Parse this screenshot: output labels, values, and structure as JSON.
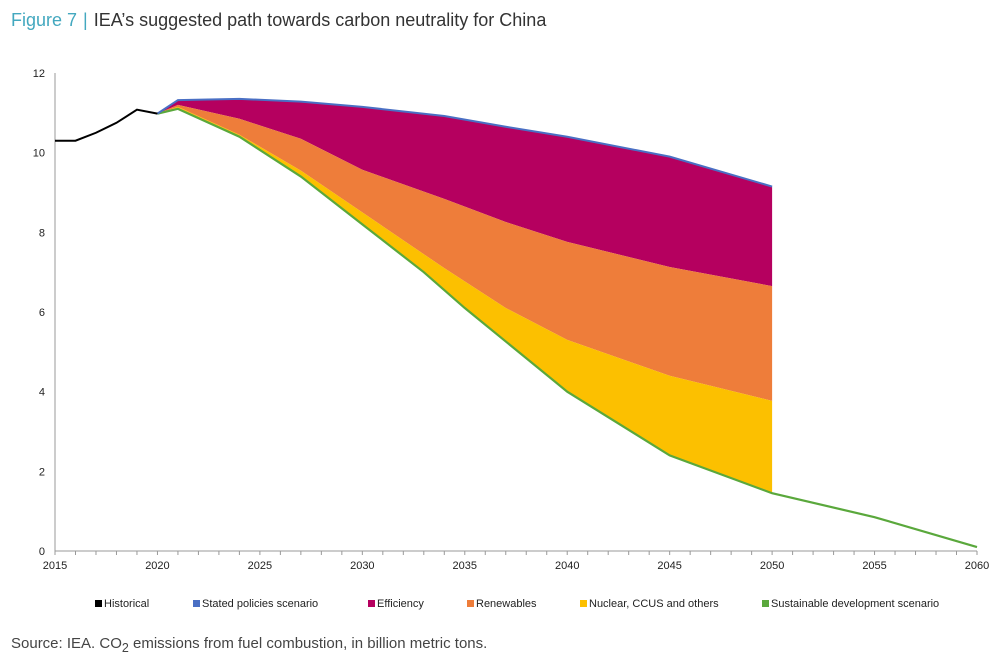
{
  "title": {
    "figure": "Figure 7",
    "text": "IEA’s suggested path towards carbon neutrality for China"
  },
  "source": {
    "prefix": "Source: IEA. CO",
    "sub": "2",
    "suffix": " emissions from fuel combustion, in billion metric tons."
  },
  "chart_data": {
    "type": "area",
    "xlim": [
      2015,
      2060
    ],
    "ylim": [
      0,
      12
    ],
    "xticks": [
      "2015",
      "2020",
      "2025",
      "2030",
      "2035",
      "2040",
      "2045",
      "2050",
      "2055",
      "2060"
    ],
    "yticks": [
      "0",
      "2",
      "4",
      "6",
      "8",
      "10",
      "12"
    ],
    "legend_position": "bottom",
    "colors": {
      "historical": "#000000",
      "stated": "#4a6fc4",
      "efficiency": "#b5005f",
      "renewables": "#ee7d3a",
      "nuclear": "#fcc000",
      "sds": "#5aa83c"
    },
    "series": [
      {
        "name": "Historical",
        "key": "historical",
        "x": [
          2015,
          2016,
          2017,
          2018,
          2019,
          2020
        ],
        "values": [
          10.3,
          10.3,
          10.5,
          10.75,
          11.08,
          10.98
        ]
      },
      {
        "name": "Stated policies scenario",
        "key": "stated",
        "x": [
          2020,
          2021,
          2024,
          2027,
          2030,
          2034,
          2037,
          2040,
          2045,
          2050
        ],
        "values": [
          10.98,
          11.32,
          11.35,
          11.28,
          11.15,
          10.92,
          10.65,
          10.4,
          9.9,
          9.15
        ]
      },
      {
        "name": "Efficiency",
        "key": "efficiency",
        "x": [
          2020,
          2021,
          2024,
          2027,
          2030,
          2034,
          2037,
          2040,
          2045,
          2050
        ],
        "values": [
          10.98,
          11.2,
          10.85,
          10.35,
          9.57,
          8.84,
          8.26,
          7.76,
          7.13,
          6.65
        ]
      },
      {
        "name": "Renewables",
        "key": "renewables",
        "x": [
          2020,
          2021,
          2024,
          2027,
          2030,
          2034,
          2037,
          2040,
          2045,
          2050
        ],
        "values": [
          10.98,
          11.15,
          10.45,
          9.55,
          8.5,
          7.1,
          6.1,
          5.3,
          4.4,
          3.77
        ]
      },
      {
        "name": "Nuclear, CCUS and others",
        "key": "nuclear",
        "x": [],
        "values": []
      },
      {
        "name": "Sustainable development scenario",
        "key": "sds",
        "x": [
          2020,
          2021,
          2024,
          2027,
          2030,
          2033,
          2035,
          2040,
          2045,
          2050,
          2055,
          2060
        ],
        "values": [
          10.98,
          11.1,
          10.4,
          9.4,
          8.2,
          7.0,
          6.1,
          4.0,
          2.4,
          1.45,
          0.85,
          0.1
        ]
      }
    ]
  }
}
